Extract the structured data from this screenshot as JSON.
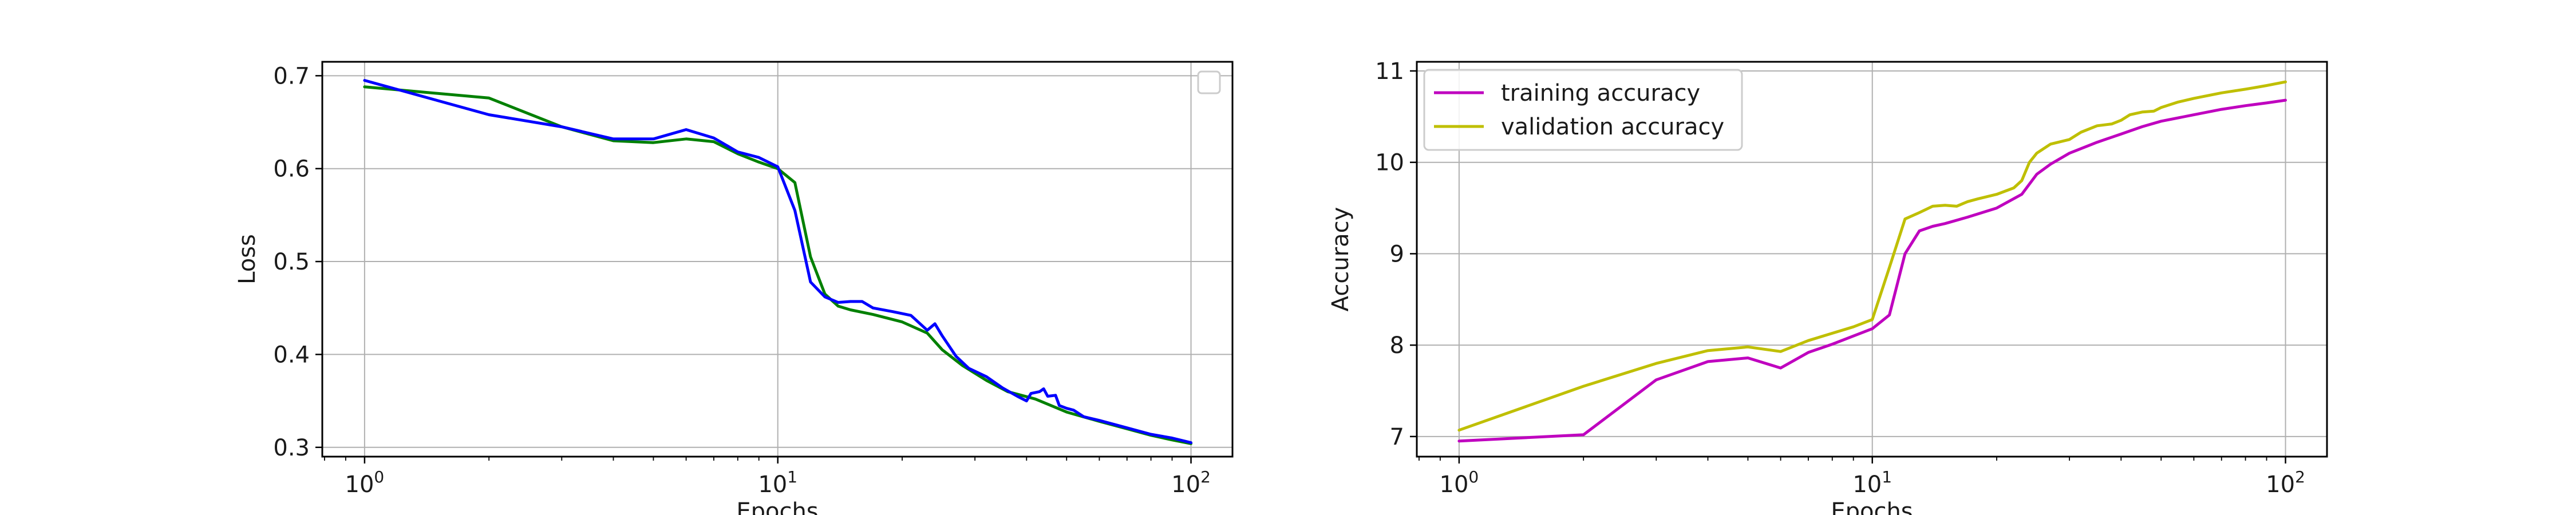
{
  "chart_data": [
    {
      "type": "line",
      "xscale": "log",
      "xlabel": "Epochs",
      "ylabel": "Loss",
      "xlim": [
        0.79,
        126
      ],
      "ylim": [
        0.29,
        0.715
      ],
      "grid": true,
      "legend": {
        "placement": "top-right",
        "entries": []
      },
      "x_ticks": [
        {
          "value": 1,
          "base": "10",
          "exp": "0"
        },
        {
          "value": 10,
          "base": "10",
          "exp": "1"
        },
        {
          "value": 100,
          "base": "10",
          "exp": "2"
        }
      ],
      "y_ticks": [
        {
          "value": 0.3,
          "label": "0.3"
        },
        {
          "value": 0.4,
          "label": "0.4"
        },
        {
          "value": 0.5,
          "label": "0.5"
        },
        {
          "value": 0.6,
          "label": "0.6"
        },
        {
          "value": 0.7,
          "label": "0.7"
        }
      ],
      "series": [
        {
          "color": "#008000",
          "points": [
            [
              1,
              0.688
            ],
            [
              2,
              0.676
            ],
            [
              3,
              0.645
            ],
            [
              4,
              0.63
            ],
            [
              5,
              0.628
            ],
            [
              6,
              0.632
            ],
            [
              7,
              0.629
            ],
            [
              8,
              0.616
            ],
            [
              9,
              0.607
            ],
            [
              10,
              0.6
            ],
            [
              11,
              0.585
            ],
            [
              12,
              0.505
            ],
            [
              13,
              0.465
            ],
            [
              14,
              0.452
            ],
            [
              15,
              0.448
            ],
            [
              17,
              0.443
            ],
            [
              20,
              0.435
            ],
            [
              23,
              0.423
            ],
            [
              25,
              0.405
            ],
            [
              28,
              0.388
            ],
            [
              32,
              0.372
            ],
            [
              36,
              0.36
            ],
            [
              42,
              0.352
            ],
            [
              50,
              0.338
            ],
            [
              60,
              0.328
            ],
            [
              70,
              0.32
            ],
            [
              80,
              0.313
            ],
            [
              90,
              0.308
            ],
            [
              100,
              0.304
            ]
          ]
        },
        {
          "color": "#0000ff",
          "points": [
            [
              1,
              0.695
            ],
            [
              2,
              0.658
            ],
            [
              3,
              0.645
            ],
            [
              4,
              0.632
            ],
            [
              5,
              0.632
            ],
            [
              6,
              0.642
            ],
            [
              7,
              0.633
            ],
            [
              8,
              0.618
            ],
            [
              9,
              0.612
            ],
            [
              10,
              0.602
            ],
            [
              11,
              0.555
            ],
            [
              12,
              0.478
            ],
            [
              13,
              0.462
            ],
            [
              14,
              0.456
            ],
            [
              15,
              0.457
            ],
            [
              16,
              0.457
            ],
            [
              17,
              0.45
            ],
            [
              19,
              0.446
            ],
            [
              21,
              0.442
            ],
            [
              23,
              0.426
            ],
            [
              24,
              0.433
            ],
            [
              25,
              0.42
            ],
            [
              27,
              0.398
            ],
            [
              29,
              0.385
            ],
            [
              32,
              0.376
            ],
            [
              35,
              0.364
            ],
            [
              38,
              0.355
            ],
            [
              40,
              0.35
            ],
            [
              41,
              0.358
            ],
            [
              43,
              0.36
            ],
            [
              44,
              0.363
            ],
            [
              45,
              0.355
            ],
            [
              47,
              0.356
            ],
            [
              48,
              0.345
            ],
            [
              50,
              0.342
            ],
            [
              52,
              0.34
            ],
            [
              55,
              0.333
            ],
            [
              60,
              0.329
            ],
            [
              70,
              0.321
            ],
            [
              80,
              0.314
            ],
            [
              90,
              0.31
            ],
            [
              100,
              0.305
            ]
          ]
        }
      ]
    },
    {
      "type": "line",
      "xscale": "log",
      "xlabel": "Epochs",
      "ylabel": "Accuracy",
      "xlim": [
        0.79,
        126
      ],
      "ylim": [
        6.78,
        11.1
      ],
      "grid": true,
      "legend": {
        "placement": "top-left",
        "entries": [
          "training accuracy",
          "validation accuracy"
        ]
      },
      "x_ticks": [
        {
          "value": 1,
          "base": "10",
          "exp": "0"
        },
        {
          "value": 10,
          "base": "10",
          "exp": "1"
        },
        {
          "value": 100,
          "base": "10",
          "exp": "2"
        }
      ],
      "y_ticks": [
        {
          "value": 7,
          "label": "7"
        },
        {
          "value": 8,
          "label": "8"
        },
        {
          "value": 9,
          "label": "9"
        },
        {
          "value": 10,
          "label": "10"
        },
        {
          "value": 11,
          "label": "11"
        }
      ],
      "series": [
        {
          "name": "training accuracy",
          "color": "#bf00bf",
          "points": [
            [
              1,
              6.95
            ],
            [
              2,
              7.02
            ],
            [
              3,
              7.62
            ],
            [
              4,
              7.82
            ],
            [
              5,
              7.86
            ],
            [
              6,
              7.75
            ],
            [
              7,
              7.92
            ],
            [
              8,
              8.01
            ],
            [
              9,
              8.1
            ],
            [
              10,
              8.18
            ],
            [
              11,
              8.33
            ],
            [
              12,
              9.0
            ],
            [
              13,
              9.25
            ],
            [
              14,
              9.3
            ],
            [
              15,
              9.33
            ],
            [
              17,
              9.4
            ],
            [
              20,
              9.5
            ],
            [
              23,
              9.65
            ],
            [
              25,
              9.87
            ],
            [
              27,
              9.98
            ],
            [
              30,
              10.1
            ],
            [
              35,
              10.22
            ],
            [
              40,
              10.31
            ],
            [
              45,
              10.39
            ],
            [
              50,
              10.45
            ],
            [
              60,
              10.52
            ],
            [
              70,
              10.58
            ],
            [
              80,
              10.62
            ],
            [
              90,
              10.65
            ],
            [
              100,
              10.68
            ]
          ]
        },
        {
          "name": "validation accuracy",
          "color": "#bfbf00",
          "points": [
            [
              1,
              7.07
            ],
            [
              2,
              7.55
            ],
            [
              3,
              7.8
            ],
            [
              4,
              7.94
            ],
            [
              5,
              7.98
            ],
            [
              6,
              7.93
            ],
            [
              7,
              8.05
            ],
            [
              8,
              8.13
            ],
            [
              9,
              8.2
            ],
            [
              10,
              8.28
            ],
            [
              11,
              8.85
            ],
            [
              12,
              9.38
            ],
            [
              13,
              9.45
            ],
            [
              14,
              9.52
            ],
            [
              15,
              9.53
            ],
            [
              16,
              9.52
            ],
            [
              17,
              9.57
            ],
            [
              18,
              9.6
            ],
            [
              20,
              9.65
            ],
            [
              22,
              9.72
            ],
            [
              23,
              9.8
            ],
            [
              24,
              10.0
            ],
            [
              25,
              10.1
            ],
            [
              27,
              10.2
            ],
            [
              30,
              10.25
            ],
            [
              32,
              10.33
            ],
            [
              35,
              10.4
            ],
            [
              38,
              10.42
            ],
            [
              40,
              10.46
            ],
            [
              42,
              10.52
            ],
            [
              45,
              10.55
            ],
            [
              48,
              10.56
            ],
            [
              50,
              10.6
            ],
            [
              55,
              10.66
            ],
            [
              60,
              10.7
            ],
            [
              70,
              10.76
            ],
            [
              80,
              10.8
            ],
            [
              90,
              10.84
            ],
            [
              100,
              10.88
            ]
          ]
        }
      ]
    }
  ]
}
